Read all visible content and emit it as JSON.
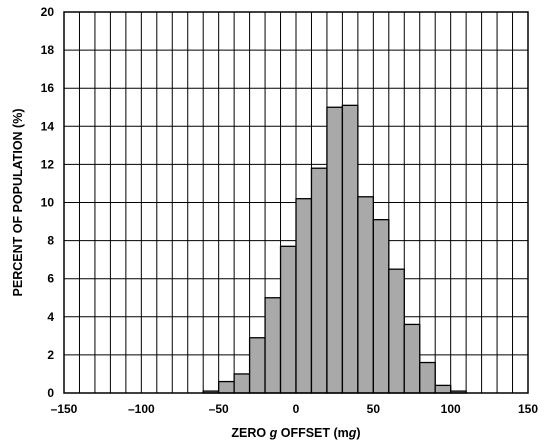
{
  "chart_data": {
    "type": "bar",
    "xlabel_parts": [
      {
        "text": "ZERO ",
        "italic": false
      },
      {
        "text": "g",
        "italic": true
      },
      {
        "text": " OFFSET (m",
        "italic": false
      },
      {
        "text": "g",
        "italic": true
      },
      {
        "text": ")",
        "italic": false
      }
    ],
    "ylabel": "PERCENT OF POPULATION (%)",
    "xlim": [
      -150,
      150
    ],
    "ylim": [
      0,
      20
    ],
    "x_ticks": [
      -150,
      -100,
      -50,
      0,
      50,
      100,
      150
    ],
    "x_tick_labels": [
      "–150",
      "–100",
      "–50",
      "0",
      "50",
      "100",
      "150"
    ],
    "y_ticks": [
      0,
      2,
      4,
      6,
      8,
      10,
      12,
      14,
      16,
      18,
      20
    ],
    "y_tick_labels": [
      "0",
      "2",
      "4",
      "6",
      "8",
      "10",
      "12",
      "14",
      "16",
      "18",
      "20"
    ],
    "x_grid_step": 10,
    "y_grid_step": 2,
    "grid": true,
    "bin_width": 10,
    "bins": [
      {
        "x0": -60,
        "x1": -50,
        "value": 0.1
      },
      {
        "x0": -50,
        "x1": -40,
        "value": 0.6
      },
      {
        "x0": -40,
        "x1": -30,
        "value": 1.0
      },
      {
        "x0": -30,
        "x1": -20,
        "value": 2.9
      },
      {
        "x0": -20,
        "x1": -10,
        "value": 5.0
      },
      {
        "x0": -10,
        "x1": 0,
        "value": 7.7
      },
      {
        "x0": 0,
        "x1": 10,
        "value": 10.2
      },
      {
        "x0": 10,
        "x1": 20,
        "value": 11.8
      },
      {
        "x0": 20,
        "x1": 30,
        "value": 15.0
      },
      {
        "x0": 30,
        "x1": 40,
        "value": 15.1
      },
      {
        "x0": 40,
        "x1": 50,
        "value": 10.3
      },
      {
        "x0": 50,
        "x1": 60,
        "value": 9.1
      },
      {
        "x0": 60,
        "x1": 70,
        "value": 6.5
      },
      {
        "x0": 70,
        "x1": 80,
        "value": 3.6
      },
      {
        "x0": 80,
        "x1": 90,
        "value": 1.6
      },
      {
        "x0": 90,
        "x1": 100,
        "value": 0.4
      },
      {
        "x0": 100,
        "x1": 110,
        "value": 0.1
      }
    ],
    "colors": {
      "bar_fill": "#a9a9a9",
      "line": "#000000",
      "background": "#ffffff"
    }
  }
}
